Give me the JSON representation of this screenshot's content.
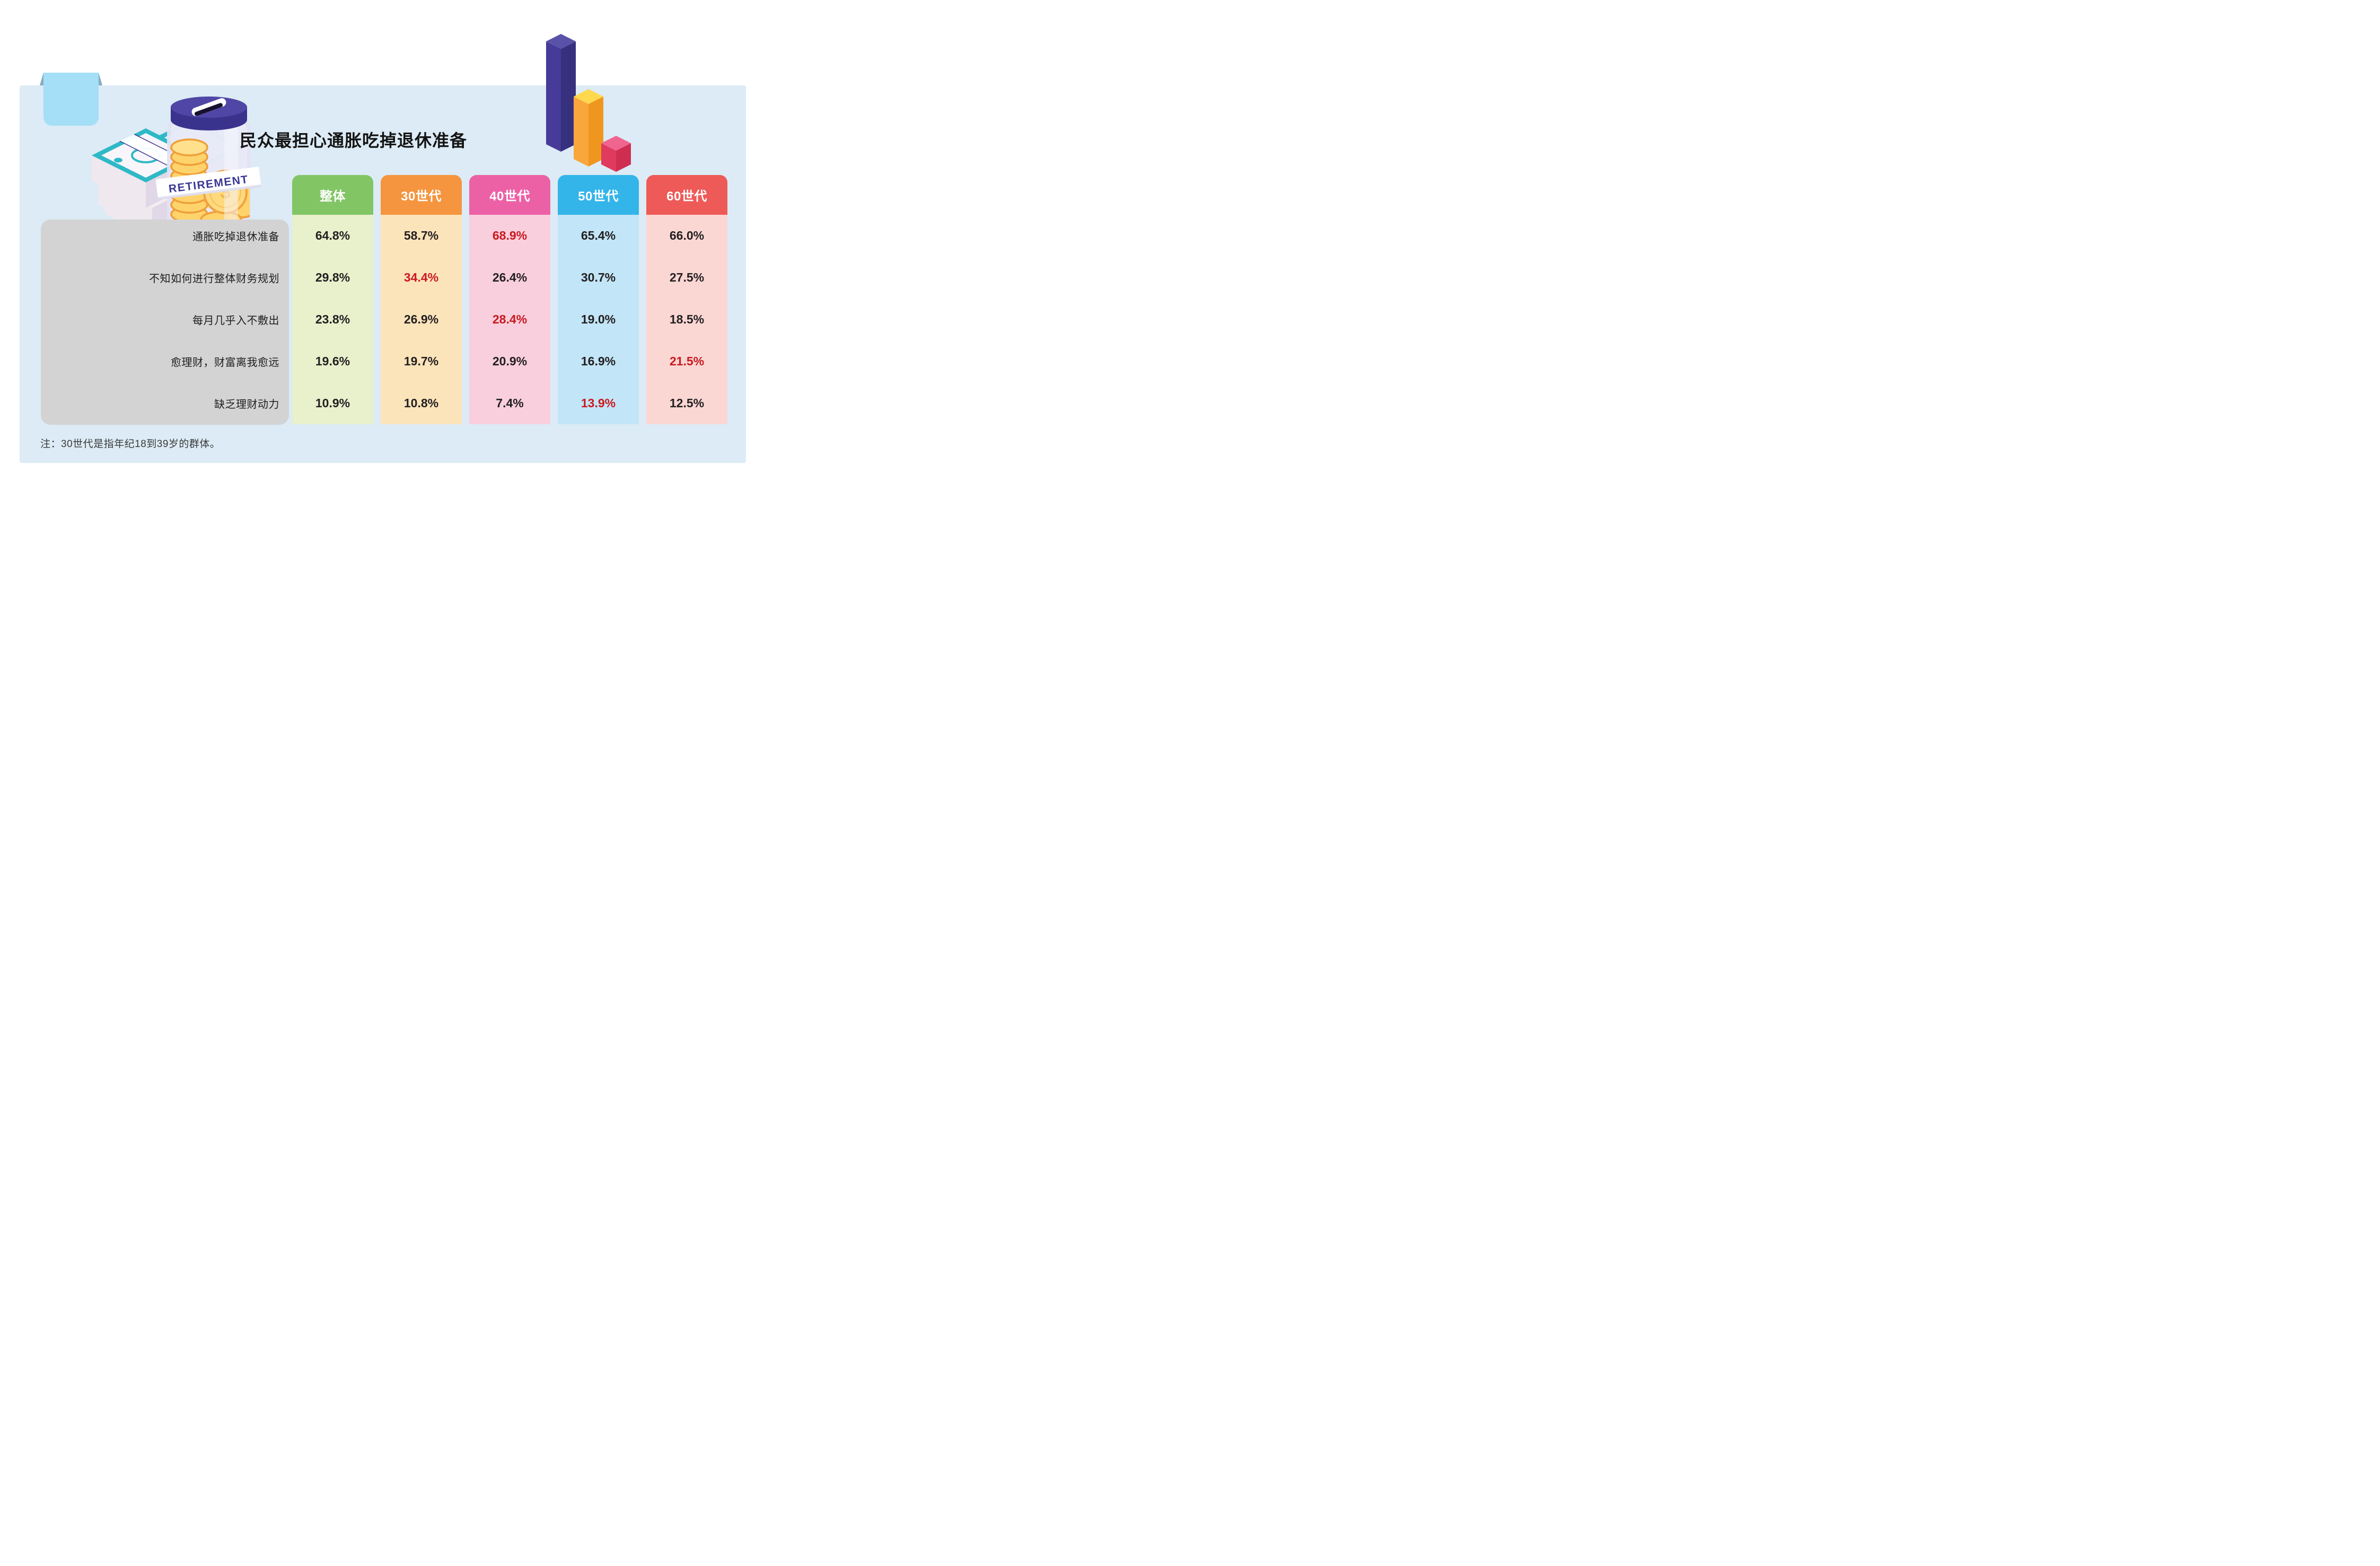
{
  "title": {
    "text": "民众最担心通胀吃掉退休准备"
  },
  "note": {
    "text": "注：30世代是指年纪18到39岁的群体。"
  },
  "card": {
    "background": "#dcebf5",
    "tab_color": "#a5def7",
    "tab_fold_color": "#86abc0"
  },
  "jar": {
    "label": "RETIREMENT"
  },
  "table": {
    "panel_color": "#d3d3d4",
    "value_color": "#231f20",
    "highlight_color": "#c9191f",
    "rows": [
      "通胀吃掉退休准备",
      "不知如何进行整体财务规划",
      "每月几乎入不敷出",
      "愈理财，财富离我愈远",
      "缺乏理财动力"
    ],
    "columns": [
      {
        "key": "overall",
        "label": "整体",
        "header_color": "#82c565",
        "body_color": "#e8f0cc",
        "values": [
          {
            "text": "64.8%",
            "highlight": false
          },
          {
            "text": "29.8%",
            "highlight": false
          },
          {
            "text": "23.8%",
            "highlight": false
          },
          {
            "text": "19.6%",
            "highlight": false
          },
          {
            "text": "10.9%",
            "highlight": false
          }
        ]
      },
      {
        "key": "gen30",
        "label": "30世代",
        "header_color": "#f5953f",
        "body_color": "#fce4ba",
        "values": [
          {
            "text": "58.7%",
            "highlight": false
          },
          {
            "text": "34.4%",
            "highlight": true
          },
          {
            "text": "26.9%",
            "highlight": false
          },
          {
            "text": "19.7%",
            "highlight": false
          },
          {
            "text": "10.8%",
            "highlight": false
          }
        ]
      },
      {
        "key": "gen40",
        "label": "40世代",
        "header_color": "#ec61a6",
        "body_color": "#f9cfdd",
        "values": [
          {
            "text": "68.9%",
            "highlight": true
          },
          {
            "text": "26.4%",
            "highlight": false
          },
          {
            "text": "28.4%",
            "highlight": true
          },
          {
            "text": "20.9%",
            "highlight": false
          },
          {
            "text": "7.4%",
            "highlight": false
          }
        ]
      },
      {
        "key": "gen50",
        "label": "50世代",
        "header_color": "#33b5e9",
        "body_color": "#c2e5f7",
        "values": [
          {
            "text": "65.4%",
            "highlight": false
          },
          {
            "text": "30.7%",
            "highlight": false
          },
          {
            "text": "19.0%",
            "highlight": false
          },
          {
            "text": "16.9%",
            "highlight": false
          },
          {
            "text": "13.9%",
            "highlight": true
          }
        ]
      },
      {
        "key": "gen60",
        "label": "60世代",
        "header_color": "#ee5a58",
        "body_color": "#fbd7d4",
        "values": [
          {
            "text": "66.0%",
            "highlight": false
          },
          {
            "text": "27.5%",
            "highlight": false
          },
          {
            "text": "18.5%",
            "highlight": false
          },
          {
            "text": "21.5%",
            "highlight": true
          },
          {
            "text": "12.5%",
            "highlight": false
          }
        ]
      }
    ]
  },
  "illustration_colors": {
    "bar_purple": "#463b99",
    "bar_yellow": "#f9a73c",
    "bar_red": "#e03a5f",
    "bill_teal": "#2fb9c6",
    "lid_purple": "#4f46a5",
    "coin_gold": "#ffd36b",
    "banner_text": "#3b3793"
  },
  "chart_data": {
    "type": "table",
    "title": "民众最担心通胀吃掉退休准备",
    "row_categories": [
      "通胀吃掉退休准备",
      "不知如何进行整体财务规划",
      "每月几乎入不敷出",
      "愈理财，财富离我愈远",
      "缺乏理财动力"
    ],
    "series": [
      {
        "name": "整体",
        "values": [
          64.8,
          29.8,
          23.8,
          19.6,
          10.9
        ]
      },
      {
        "name": "30世代",
        "values": [
          58.7,
          34.4,
          26.9,
          19.7,
          10.8
        ]
      },
      {
        "name": "40世代",
        "values": [
          68.9,
          26.4,
          28.4,
          20.9,
          7.4
        ]
      },
      {
        "name": "50世代",
        "values": [
          65.4,
          30.7,
          19.0,
          16.9,
          13.9
        ]
      },
      {
        "name": "60世代",
        "values": [
          66.0,
          27.5,
          18.5,
          21.5,
          12.5
        ]
      }
    ],
    "unit": "%",
    "highlight_rule": "row maximum shown in red",
    "highlights_by_row": [
      "40世代",
      "30世代",
      "40世代",
      "60世代",
      "50世代"
    ],
    "note": "注：30世代是指年纪18到39岁的群体。"
  }
}
